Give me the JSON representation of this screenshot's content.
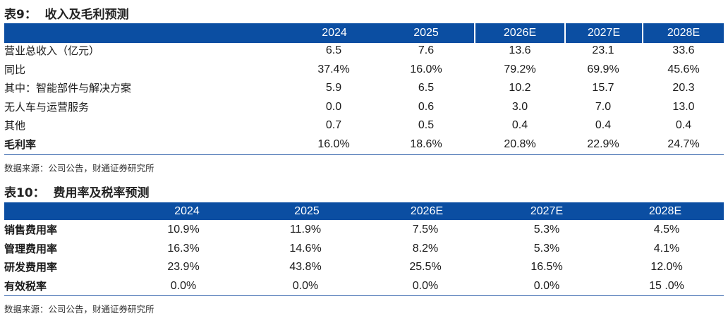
{
  "table1": {
    "title": "表9：  收入及毛利预测",
    "headers": [
      "2024",
      "2025",
      "2026E",
      "2027E",
      "2028E"
    ],
    "rows": [
      {
        "label": "营业总收入（亿元）",
        "values": [
          "6.5",
          "7.6",
          "13.6",
          "23.1",
          "33.6"
        ],
        "bold": false
      },
      {
        "label": "同比",
        "values": [
          "37.4%",
          "16.0%",
          "79.2%",
          "69.9%",
          "45.6%"
        ],
        "bold": false
      },
      {
        "label": "其中：智能部件与解决方案",
        "values": [
          "5.9",
          "6.5",
          "10.2",
          "15.7",
          "20.3"
        ],
        "bold": false
      },
      {
        "label": "无人车与运营服务",
        "values": [
          "0.0",
          "0.6",
          "3.0",
          "7.0",
          "13.0"
        ],
        "bold": false
      },
      {
        "label": "其他",
        "values": [
          "0.7",
          "0.5",
          "0.4",
          "0.4",
          "0.4"
        ],
        "bold": false
      },
      {
        "label": "毛利率",
        "values": [
          "16.0%",
          "18.6%",
          "20.8%",
          "22.9%",
          "24.7%"
        ],
        "bold": true
      }
    ],
    "source": "数据来源：公司公告，财通证券研究所"
  },
  "table2": {
    "title": "表10：  费用率及税率预测",
    "headers": [
      "2024",
      "2025",
      "2026E",
      "2027E",
      "2028E"
    ],
    "rows": [
      {
        "label": "销售费用率",
        "values": [
          "10.9%",
          "11.9%",
          "7.5%",
          "5.3%",
          "4.5%"
        ],
        "bold": true
      },
      {
        "label": "管理费用率",
        "values": [
          "16.3%",
          "14.6%",
          "8.2%",
          "5.3%",
          "4.1%"
        ],
        "bold": true
      },
      {
        "label": "研发费用率",
        "values": [
          "23.9%",
          "43.8%",
          "25.5%",
          "16.5%",
          "12.0%"
        ],
        "bold": true
      },
      {
        "label": "有效税率",
        "values": [
          "0.0%",
          "0.0%",
          "0.0%",
          "0.0%",
          "15 .0%"
        ],
        "bold": true
      }
    ],
    "source": "数据来源：公司公告，财通证券研究所"
  },
  "colors": {
    "header_bg": "#0b4ea2",
    "header_text": "#ffffff",
    "rule": "#2a5ca8"
  }
}
